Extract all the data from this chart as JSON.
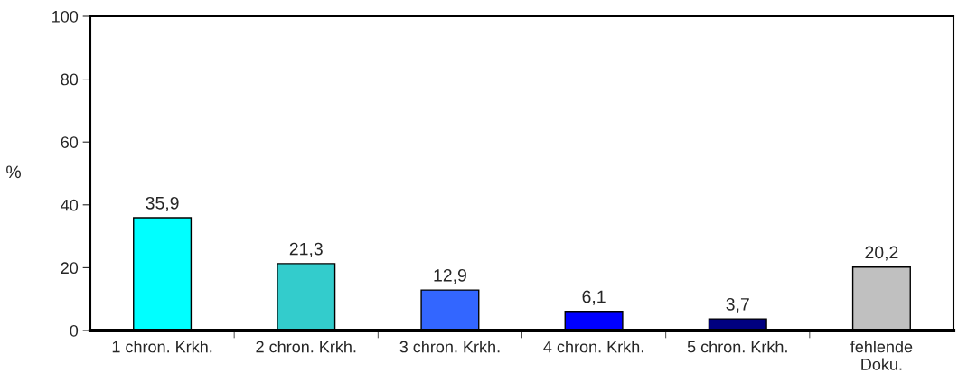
{
  "chart_data": {
    "type": "bar",
    "ylabel": "%",
    "categories": [
      "1 chron. Krkh.",
      "2 chron. Krkh.",
      "3 chron. Krkh.",
      "4 chron. Krkh.",
      "5 chron. Krkh.",
      "fehlende\nDoku."
    ],
    "values": [
      35.9,
      21.3,
      12.9,
      6.1,
      3.7,
      20.2
    ],
    "colors": [
      "#00ffff",
      "#33cccc",
      "#3366ff",
      "#0000ff",
      "#000080",
      "#c0c0c0"
    ],
    "value_labels": [
      "35,9",
      "21,3",
      "12,9",
      "6,1",
      "3,7",
      "20,2"
    ],
    "ylim": [
      0,
      100
    ],
    "yticks": [
      0,
      20,
      40,
      60,
      80,
      100
    ],
    "grid": false
  }
}
